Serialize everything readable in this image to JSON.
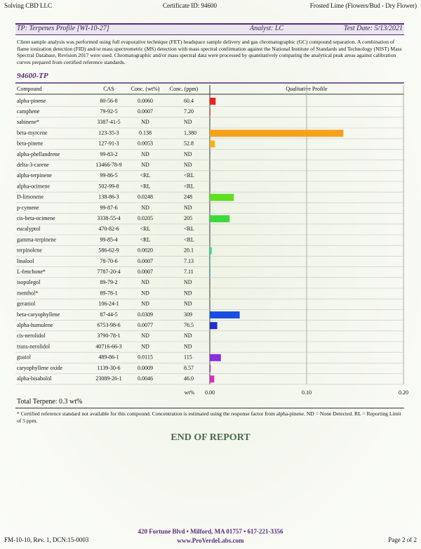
{
  "header": {
    "company": "Solving CBD LLC",
    "certificate": "Certificate ID: 94600",
    "sample": "Frosted Lime (Flowers/Bud - Dry Flower)"
  },
  "section": {
    "title": "TP: Terpenes Profile [WI-10-27]",
    "analyst": "Analyst: LC",
    "date": "Test Date: 5/13/2021"
  },
  "description": "Client sample analysis was performed using full evaporative technique (FET) headspace sample delivery and gas chromatographic (GC) compound separation. A combination of flame ionization detection (FID) and/or mass spectrometric (MS) detection with mass spectral confirmation against the National Institute of Standards and Technology (NIST) Mass Spectral Database, Revision 2017 were used. Chromatographic and/or mass spectral data were processed by quantitatively comparing the analytical peak areas against calibration curves prepared from certified reference standards.",
  "sample_id": "94600-TP",
  "table": {
    "columns": [
      "Compound",
      "CAS",
      "Conc. (wt%)",
      "Conc. (ppm)",
      "Qualitative Profile"
    ],
    "cas": [
      "80-56-8",
      "79-92-5",
      "3387-41-5",
      "123-35-3",
      "127-91-3",
      "99-83-2",
      "13466-78-9",
      "99-86-5",
      "502-99-8",
      "138-86-3",
      "99-87-6",
      "3338-55-4",
      "470-82-6",
      "99-85-4",
      "586-62-9",
      "78-70-6",
      "7787-20-4",
      "89-79-2",
      "89-78-1",
      "106-24-1",
      "87-44-5",
      "6753-98-6",
      "3790-78-1",
      "40716-66-3",
      "489-86-1",
      "1139-30-6",
      "23089-26-1"
    ],
    "ppm": [
      "60.4",
      "7.20",
      "ND",
      "1,380",
      "52.8",
      "ND",
      "ND",
      "<RL",
      "<RL",
      "248",
      "ND",
      "205",
      "<RL",
      "<RL",
      "20.1",
      "7.13",
      "7.11",
      "ND",
      "ND",
      "ND",
      "309",
      "76.5",
      "ND",
      "ND",
      "115",
      "8.57",
      "46.0"
    ]
  },
  "chart_data": {
    "type": "bar",
    "orientation": "horizontal",
    "categories": [
      "alpha-pinene",
      "camphene",
      "sabinene*",
      "beta-myrcene",
      "beta-pinene",
      "alpha-phellandrene",
      "delta-3-carene",
      "alpha-terpinene",
      "alpha-ocimene",
      "D-limonene",
      "p-cymene",
      "cis-beta-ocimene",
      "eucalyptol",
      "gamma-terpinene",
      "terpinolene",
      "linalool",
      "L-fenchone*",
      "isopulegol",
      "menthol*",
      "geraniol",
      "beta-caryophyllene",
      "alpha-humulene",
      "cis-nerolidol",
      "trans-nerolidol",
      "guaiol",
      "caryophyllene oxide",
      "alpha-bisabolol"
    ],
    "values": [
      0.006,
      0.0007,
      null,
      0.138,
      0.0053,
      null,
      null,
      null,
      null,
      0.0248,
      null,
      0.0205,
      null,
      null,
      0.002,
      0.0007,
      0.0007,
      null,
      null,
      null,
      0.0309,
      0.0077,
      null,
      null,
      0.0115,
      0.0009,
      0.0046
    ],
    "value_labels": [
      "0.0060",
      "0.0007",
      "ND",
      "0.138",
      "0.0053",
      "ND",
      "ND",
      "<RL",
      "<RL",
      "0.0248",
      "ND",
      "0.0205",
      "<RL",
      "<RL",
      "0.0020",
      "0.0007",
      "0.0007",
      "ND",
      "ND",
      "ND",
      "0.0309",
      "0.0077",
      "ND",
      "ND",
      "0.0115",
      "0.0009",
      "0.0046"
    ],
    "colors": [
      "#e8241c",
      "#f04a1a",
      null,
      "#f5a11c",
      "#f7b21c",
      null,
      null,
      null,
      null,
      "#5ee01e",
      null,
      "#3fd83a",
      null,
      null,
      "#2ee0a0",
      "#26d6c8",
      "#20c8e0",
      null,
      null,
      null,
      "#1a4ee0",
      "#2030c8",
      null,
      null,
      "#8a2ee0",
      "#b02ed8",
      "#d42ec8"
    ],
    "xlabel": "wt%",
    "xlim": [
      0,
      0.2
    ],
    "xticks": [
      {
        "value": 0,
        "label": "0.00"
      },
      {
        "value": 0.1,
        "label": "0.10"
      },
      {
        "value": 0.2,
        "label": "0.20"
      }
    ],
    "grid": true
  },
  "total": "Total Terpene: 0.3 wt%",
  "footnote": "* Certified reference standard not available for this compound. Concentration is estimated using the response factor from alpha-pinene.  ND = None Detected.  RL = Reporting Limit of 5 ppm.",
  "end": "END OF REPORT",
  "footer": {
    "form": "FM-10-10, Rev. 1, DCN:15-0003",
    "address": "420 Fortune Blvd • Milford, MA 01757 • 617-221-3356",
    "web": "www.ProVerdeLabs.com",
    "page": "Page 2 of 2"
  }
}
